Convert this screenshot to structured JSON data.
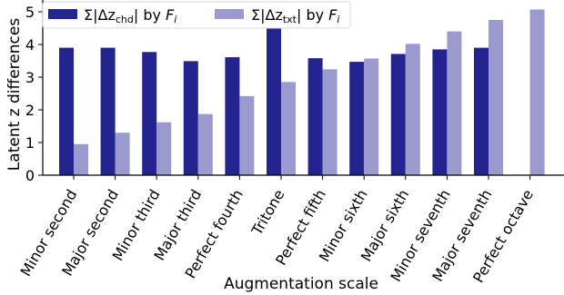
{
  "chart_data": {
    "type": "bar",
    "title": "",
    "xlabel": "Augmentation scale",
    "ylabel": "Latent z differences",
    "ylim": [
      0,
      5.3
    ],
    "yticks": [
      0,
      1,
      2,
      3,
      4,
      5
    ],
    "categories": [
      "Minor second",
      "Major second",
      "Minor third",
      "Major third",
      "Perfect fourth",
      "Tritone",
      "Perfect fifth",
      "Minor sixth",
      "Major sixth",
      "Minor seventh",
      "Major seventh",
      "Perfect octave"
    ],
    "series": [
      {
        "name": "Σ|Δz_chd| by F_i",
        "legend_main": "Σ|Δz",
        "legend_sub": "chd",
        "legend_tail": "| by ",
        "legend_var": "F",
        "legend_var_sub": "i",
        "color": "#242490",
        "values": [
          3.9,
          3.9,
          3.77,
          3.49,
          3.61,
          4.6,
          3.58,
          3.47,
          3.71,
          3.85,
          3.9,
          null
        ]
      },
      {
        "name": "Σ|Δz_txt| by F_i",
        "legend_main": "Σ|Δz",
        "legend_sub": "txt",
        "legend_tail": "| by ",
        "legend_var": "F",
        "legend_var_sub": "i",
        "color": "#9a9acf",
        "values": [
          0.95,
          1.3,
          1.62,
          1.87,
          2.42,
          2.85,
          3.24,
          3.57,
          4.02,
          4.4,
          4.75,
          5.07
        ]
      }
    ],
    "grid": false,
    "legend_position": "top-left"
  }
}
